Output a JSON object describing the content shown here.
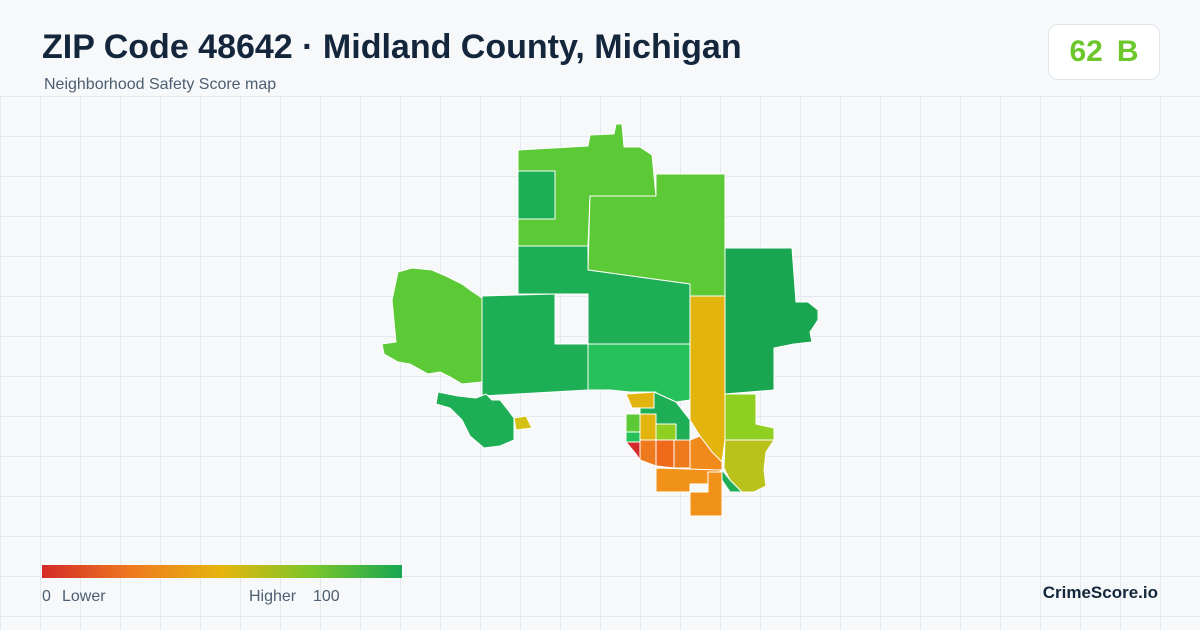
{
  "header": {
    "title": "ZIP Code 48642 · Midland County, Michigan",
    "subtitle": "Neighborhood Safety Score map"
  },
  "score": {
    "value": "62",
    "grade": "B",
    "color": "#6cc72d"
  },
  "legend": {
    "min_label": "0",
    "low_label": "Lower",
    "high_label": "Higher",
    "max_label": "100",
    "colors": [
      "#d42a2a",
      "#ee7a1e",
      "#e6b50e",
      "#7ac62a",
      "#18a653"
    ]
  },
  "brand": "CrimeScore.io"
}
